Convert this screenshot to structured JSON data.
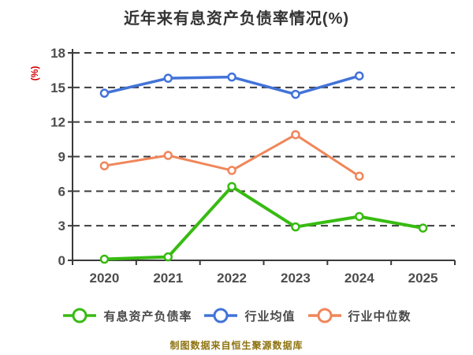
{
  "chart": {
    "title": "近年来有息资产负债率情况(%)",
    "y_unit": "(%)",
    "footer": "制图数据来自恒生聚源数据库",
    "colors": {
      "title": "#333333",
      "axis": "#3a3a3a",
      "gridline": "#3d3d3d",
      "tick_label": "#4d4d4d",
      "y_unit": "#d40000",
      "footer": "#8e7310",
      "marker_fill": "#ffffff"
    }
  },
  "chart_data": {
    "type": "line",
    "categories": [
      "2020",
      "2021",
      "2022",
      "2023",
      "2024",
      "2025"
    ],
    "series": [
      {
        "name": "有息资产负债率",
        "color": "#38bb12",
        "values": [
          0.1,
          0.3,
          6.4,
          2.9,
          3.8,
          2.8
        ]
      },
      {
        "name": "行业均值",
        "color": "#4273d8",
        "values": [
          14.5,
          15.8,
          15.9,
          14.4,
          16.0,
          null
        ]
      },
      {
        "name": "行业中位数",
        "color": "#f0865a",
        "values": [
          8.2,
          9.1,
          7.8,
          10.9,
          7.3,
          null
        ]
      }
    ],
    "title": "近年来有息资产负债率情况(%)",
    "xlabel": "",
    "ylabel": "(%)",
    "ylim": [
      0,
      18
    ],
    "ytick_step": 3,
    "grid": "dashed-horizontal",
    "legend_position": "bottom",
    "marker": "circle-white-fill"
  }
}
